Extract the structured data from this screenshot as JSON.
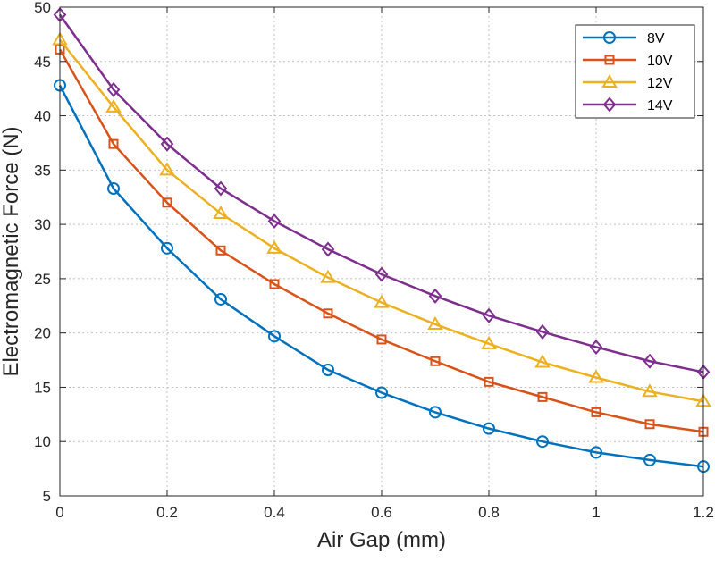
{
  "chart_data": {
    "type": "line",
    "xlabel": "Air Gap (mm)",
    "ylabel": "Electromagnetic Force (N)",
    "xlim": [
      0,
      1.2
    ],
    "ylim": [
      5,
      50
    ],
    "x_ticks": [
      "0",
      "0.2",
      "0.4",
      "0.6",
      "0.8",
      "1",
      "1.2"
    ],
    "y_ticks": [
      "5",
      "10",
      "15",
      "20",
      "25",
      "30",
      "35",
      "40",
      "45",
      "50"
    ],
    "grid": true,
    "legend_position": "top-right",
    "x": [
      0,
      0.1,
      0.2,
      0.3,
      0.4,
      0.5,
      0.6,
      0.7,
      0.8,
      0.9,
      1.0,
      1.1,
      1.2
    ],
    "series": [
      {
        "name": "8V",
        "color": "#0072BD",
        "marker": "circle",
        "values": [
          42.8,
          33.3,
          27.8,
          23.1,
          19.7,
          16.6,
          14.5,
          12.7,
          11.2,
          10.0,
          9.0,
          8.3,
          7.7
        ]
      },
      {
        "name": "10V",
        "color": "#D95319",
        "marker": "square",
        "values": [
          46.1,
          37.4,
          32.0,
          27.6,
          24.5,
          21.8,
          19.4,
          17.4,
          15.5,
          14.1,
          12.7,
          11.6,
          10.9
        ]
      },
      {
        "name": "12V",
        "color": "#EDB120",
        "marker": "triangle",
        "values": [
          47.0,
          40.8,
          35.0,
          31.0,
          27.8,
          25.1,
          22.8,
          20.8,
          19.0,
          17.3,
          15.9,
          14.6,
          13.7
        ]
      },
      {
        "name": "14V",
        "color": "#7E2F8E",
        "marker": "diamond",
        "values": [
          49.3,
          42.4,
          37.4,
          33.3,
          30.3,
          27.7,
          25.4,
          23.4,
          21.6,
          20.1,
          18.7,
          17.4,
          16.4
        ]
      }
    ]
  }
}
